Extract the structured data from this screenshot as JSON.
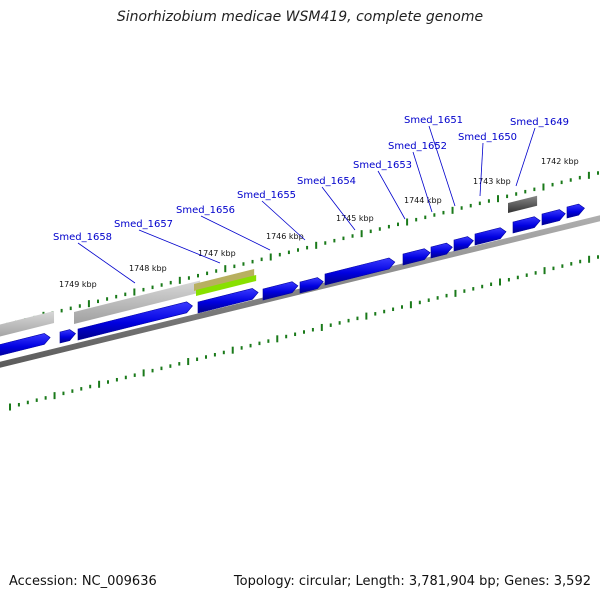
{
  "title": "Sinorhizobium medicae WSM419, complete genome",
  "footer": {
    "accession": "Accession: NC_009636",
    "summary": "Topology: circular; Length: 3,781,904 bp; Genes: 3,592"
  },
  "colors": {
    "gene": "#1010e6",
    "gene_dark": "#0000a0",
    "backbone": "#808080",
    "ticks": "#1a7a1a",
    "label": "#0000cc",
    "highlight_top": "#b8b060",
    "highlight_bottom": "#88e000",
    "gray_feature": "#bdbdbd",
    "dark_feature": "#555555"
  },
  "kbp_labels": [
    "1742 kbp",
    "1743 kbp",
    "1744 kbp",
    "1745 kbp",
    "1746 kbp",
    "1747 kbp",
    "1748 kbp",
    "1749 kbp"
  ],
  "gene_labels": [
    "Smed_1649",
    "Smed_1650",
    "Smed_1651",
    "Smed_1652",
    "Smed_1653",
    "Smed_1654",
    "Smed_1655",
    "Smed_1656",
    "Smed_1657",
    "Smed_1658"
  ]
}
